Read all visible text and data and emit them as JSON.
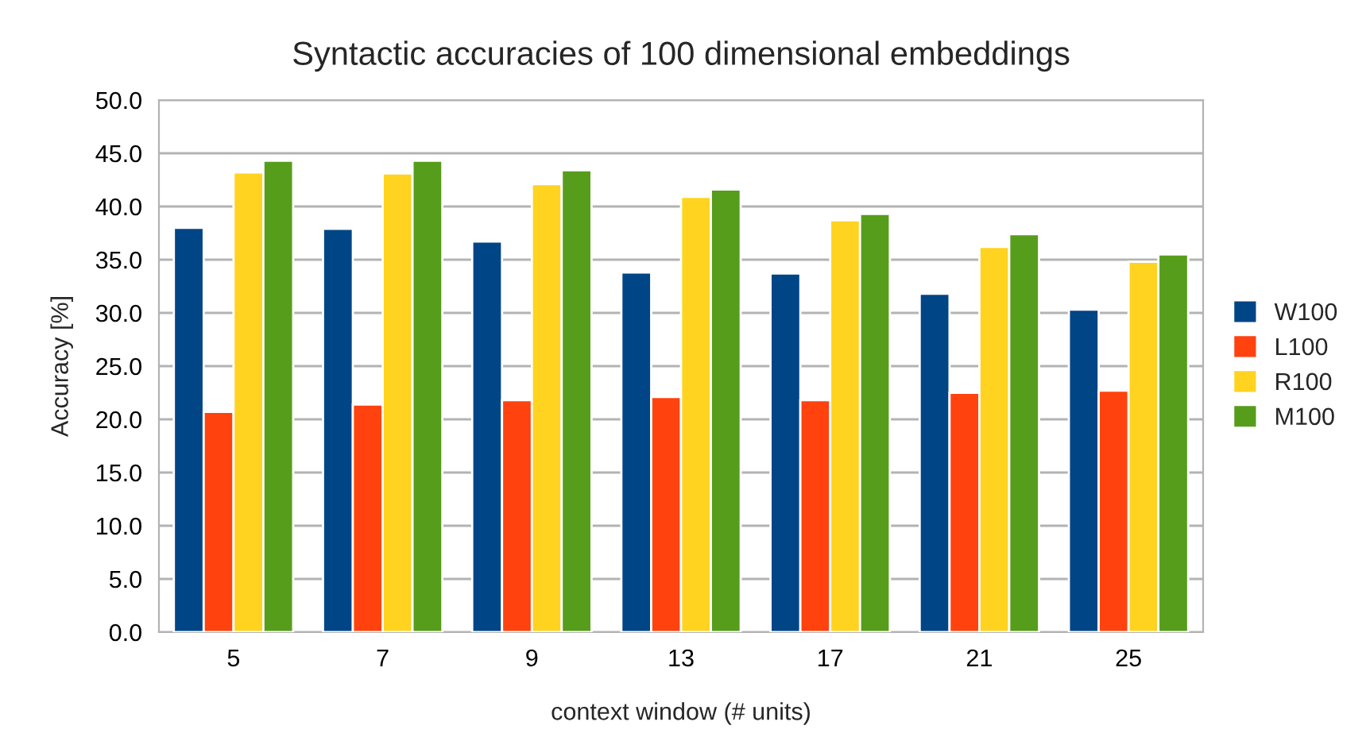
{
  "chart_data": {
    "type": "bar",
    "title": "Syntactic accuracies of 100 dimensional embeddings",
    "xlabel": "context window (# units)",
    "ylabel": "Accuracy [%]",
    "categories": [
      "5",
      "7",
      "9",
      "13",
      "17",
      "21",
      "25"
    ],
    "series": [
      {
        "name": "W100",
        "color": "#004586",
        "values": [
          38.0,
          37.9,
          36.7,
          33.8,
          33.7,
          31.8,
          30.3
        ]
      },
      {
        "name": "L100",
        "color": "#ff420e",
        "values": [
          20.7,
          21.4,
          21.8,
          22.1,
          21.8,
          22.5,
          22.7
        ]
      },
      {
        "name": "R100",
        "color": "#ffd320",
        "values": [
          43.2,
          43.1,
          42.1,
          40.9,
          38.7,
          36.2,
          34.8
        ]
      },
      {
        "name": "M100",
        "color": "#579d1c",
        "values": [
          44.3,
          44.3,
          43.4,
          41.6,
          39.3,
          37.4,
          35.5
        ]
      }
    ],
    "ylim": [
      0,
      50
    ],
    "yticks": [
      {
        "value": 0,
        "label": "0.0"
      },
      {
        "value": 5,
        "label": "5.0"
      },
      {
        "value": 10,
        "label": "10.0"
      },
      {
        "value": 15,
        "label": "15.0"
      },
      {
        "value": 20,
        "label": "20.0"
      },
      {
        "value": 25,
        "label": "25.0"
      },
      {
        "value": 30,
        "label": "30.0"
      },
      {
        "value": 35,
        "label": "35.0"
      },
      {
        "value": 40,
        "label": "40.0"
      },
      {
        "value": 45,
        "label": "45.0"
      },
      {
        "value": 50,
        "label": "50.0"
      }
    ],
    "grid": "y",
    "legend": "right"
  }
}
